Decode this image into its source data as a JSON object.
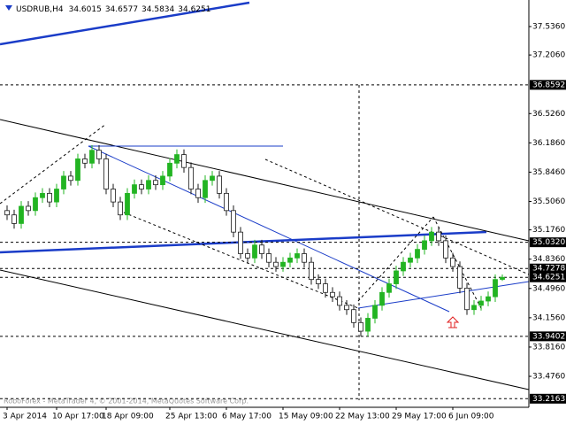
{
  "chart_data": {
    "type": "candlestick",
    "title": "USDRUB,H4",
    "watermark": "RoboForex - MetaTrader 4, © 2001-2014, MetaQuotes Software Corp.",
    "categories": [
      "3 Apr 2014",
      null,
      null,
      null,
      null,
      null,
      null,
      "10 Apr 17:00",
      null,
      null,
      null,
      null,
      null,
      null,
      "18 Apr 09:00",
      null,
      null,
      null,
      null,
      null,
      null,
      null,
      null,
      "25 Apr 13:00",
      null,
      null,
      null,
      null,
      null,
      null,
      null,
      "6 May 17:00",
      null,
      null,
      null,
      null,
      null,
      null,
      null,
      "15 May 09:00",
      null,
      null,
      null,
      null,
      null,
      null,
      null,
      "22 May 13:00",
      null,
      null,
      null,
      null,
      null,
      null,
      null,
      "29 May 17:00",
      null,
      null,
      null,
      null,
      null,
      null,
      null,
      "6 Jun 09:00",
      null,
      null,
      null,
      null,
      null,
      null,
      null
    ],
    "open": [
      35.4,
      35.35,
      35.25,
      35.45,
      35.4,
      35.55,
      35.6,
      35.5,
      35.65,
      35.8,
      35.75,
      36.0,
      35.95,
      36.1,
      36.0,
      35.65,
      35.5,
      35.35,
      35.6,
      35.7,
      35.65,
      35.75,
      35.7,
      35.8,
      35.95,
      36.05,
      35.9,
      35.65,
      35.55,
      35.75,
      35.8,
      35.6,
      35.4,
      35.15,
      34.9,
      34.85,
      35.0,
      34.9,
      34.8,
      34.75,
      34.8,
      34.85,
      34.9,
      34.8,
      34.6,
      34.55,
      34.45,
      34.4,
      34.3,
      34.25,
      34.1,
      34.0,
      34.15,
      34.3,
      34.45,
      34.55,
      34.7,
      34.8,
      34.85,
      34.95,
      35.05,
      35.15,
      35.05,
      34.85,
      34.75,
      34.5,
      34.25,
      34.3,
      34.35,
      34.4,
      34.6015
    ],
    "high": [
      35.46,
      35.41,
      35.51,
      35.51,
      35.61,
      35.66,
      35.66,
      35.71,
      35.86,
      35.86,
      36.06,
      36.06,
      36.16,
      36.16,
      36.06,
      35.71,
      35.56,
      35.66,
      35.76,
      35.76,
      35.81,
      35.81,
      35.86,
      36.01,
      36.11,
      36.11,
      35.96,
      35.71,
      35.81,
      35.86,
      35.86,
      35.66,
      35.46,
      35.21,
      34.96,
      35.06,
      35.06,
      34.96,
      34.86,
      34.86,
      34.91,
      34.96,
      34.96,
      34.86,
      34.66,
      34.61,
      34.51,
      34.46,
      34.36,
      34.31,
      34.16,
      34.21,
      34.36,
      34.51,
      34.61,
      34.76,
      34.86,
      34.91,
      35.01,
      35.11,
      35.21,
      35.21,
      35.11,
      34.91,
      34.81,
      34.56,
      34.36,
      34.41,
      34.46,
      34.66,
      34.6577
    ],
    "low": [
      35.29,
      35.19,
      35.19,
      35.34,
      35.34,
      35.49,
      35.44,
      35.44,
      35.59,
      35.69,
      35.69,
      35.89,
      35.89,
      35.94,
      35.59,
      35.44,
      35.29,
      35.29,
      35.54,
      35.59,
      35.59,
      35.64,
      35.64,
      35.74,
      35.89,
      35.84,
      35.59,
      35.49,
      35.49,
      35.69,
      35.54,
      35.34,
      35.09,
      34.84,
      34.79,
      34.79,
      34.84,
      34.74,
      34.69,
      34.69,
      34.74,
      34.79,
      34.74,
      34.54,
      34.49,
      34.39,
      34.34,
      34.24,
      34.19,
      34.04,
      33.94,
      33.94,
      34.09,
      34.24,
      34.39,
      34.49,
      34.64,
      34.74,
      34.79,
      34.89,
      34.99,
      34.99,
      34.79,
      34.69,
      34.44,
      34.19,
      34.19,
      34.24,
      34.29,
      34.34,
      34.5834
    ],
    "close": [
      35.35,
      35.25,
      35.45,
      35.4,
      35.55,
      35.6,
      35.5,
      35.65,
      35.8,
      35.75,
      36.0,
      35.95,
      36.1,
      36.0,
      35.65,
      35.5,
      35.35,
      35.6,
      35.7,
      35.65,
      35.75,
      35.7,
      35.8,
      35.95,
      36.05,
      35.9,
      35.65,
      35.55,
      35.75,
      35.8,
      35.6,
      35.4,
      35.15,
      34.9,
      34.85,
      35.0,
      34.9,
      34.8,
      34.75,
      34.8,
      34.85,
      34.9,
      34.8,
      34.6,
      34.55,
      34.45,
      34.4,
      34.3,
      34.25,
      34.1,
      34.0,
      34.15,
      34.3,
      34.45,
      34.55,
      34.7,
      34.8,
      34.85,
      34.95,
      35.05,
      35.15,
      35.05,
      34.85,
      34.75,
      34.5,
      34.25,
      34.3,
      34.35,
      34.4,
      34.6,
      34.6251
    ],
    "up_color": "#22b422",
    "down_color": "#1a1a1a",
    "ylim": [
      33.1167,
      37.8443
    ],
    "yticks": [
      {
        "value": 37.536,
        "label": "37.5360"
      },
      {
        "value": 37.206,
        "label": "37.2060"
      },
      {
        "value": 36.526,
        "label": "36.5260"
      },
      {
        "value": 36.186,
        "label": "36.1860"
      },
      {
        "value": 35.846,
        "label": "35.8460"
      },
      {
        "value": 35.506,
        "label": "35.5060"
      },
      {
        "value": 35.176,
        "label": "35.1760"
      },
      {
        "value": 34.836,
        "label": "34.8360"
      },
      {
        "value": 34.496,
        "label": "34.4960"
      },
      {
        "value": 34.156,
        "label": "34.1560"
      },
      {
        "value": 33.816,
        "label": "33.8160"
      },
      {
        "value": 33.476,
        "label": "33.4760"
      }
    ],
    "levels": [
      {
        "value": 36.8592,
        "label": "36.8592"
      },
      {
        "value": 35.032,
        "label": "35.0320"
      },
      {
        "value": 34.7278,
        "label": "34.7278"
      },
      {
        "value": 34.6251,
        "label": "34.6251"
      },
      {
        "value": 33.9402,
        "label": "33.9402"
      },
      {
        "value": 33.2163,
        "label": "33.2163"
      }
    ]
  }
}
